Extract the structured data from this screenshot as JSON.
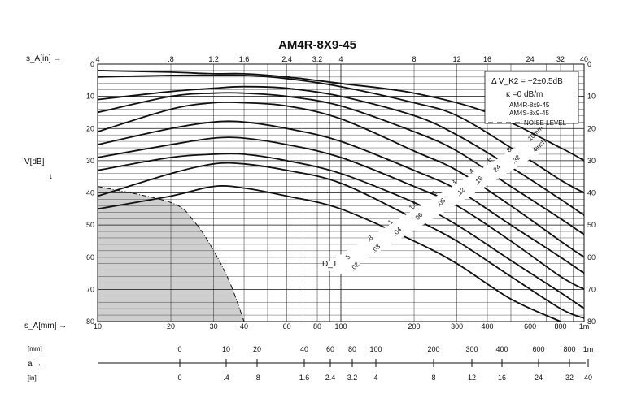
{
  "chart_data": {
    "type": "line",
    "title": "AM4R-8X9-45",
    "x_axis_top": {
      "label": "s_A[in] →",
      "ticks": [
        "4",
        ".8",
        "1.2",
        "1.6",
        "2.4",
        "3.2",
        "4",
        "8",
        "12",
        "16",
        "24",
        "32",
        "40"
      ]
    },
    "x_axis_bottom": {
      "label": "s_A[mm] →",
      "scale": "log",
      "range": [
        10,
        1000
      ],
      "ticks": [
        "10",
        "20",
        "30",
        "40",
        "60",
        "80",
        "100",
        "200",
        "300",
        "400",
        "600",
        "800",
        "1m"
      ]
    },
    "y_axis": {
      "label": "V[dB]",
      "arrow": "↓",
      "inverted": true,
      "range": [
        0,
        80
      ],
      "ticks": [
        "0",
        "10",
        "20",
        "30",
        "40",
        "50",
        "60",
        "70",
        "80"
      ]
    },
    "legend": {
      "position": "top-right",
      "lines": [
        "Δ V_K2 = −2±0.5dB",
        "κ =0 dB/m",
        "AM4R-8x9-45",
        "AM4S-8x9-45"
      ],
      "noise_label": "NOISE LEVEL"
    },
    "d_label": "D_T",
    "d_labels_mm": [
      "5",
      ".8",
      "1",
      "1.5",
      "2",
      "3",
      "4",
      "6",
      "8",
      "10mm"
    ],
    "d_labels_inch": [
      ".02",
      ".03",
      ".04",
      ".06",
      ".08",
      ".12",
      ".16",
      ".24",
      ".32",
      "4inch"
    ],
    "series": [
      {
        "values": [
          [
            10,
            2
          ],
          [
            20,
            2.5
          ],
          [
            30,
            3
          ],
          [
            40,
            3
          ],
          [
            60,
            4
          ],
          [
            100,
            6
          ],
          [
            200,
            9
          ],
          [
            400,
            15
          ],
          [
            800,
            26
          ],
          [
            1000,
            30
          ]
        ]
      },
      {
        "values": [
          [
            10,
            4
          ],
          [
            20,
            3.5
          ],
          [
            30,
            3.5
          ],
          [
            40,
            3.5
          ],
          [
            60,
            4.5
          ],
          [
            100,
            7
          ],
          [
            200,
            12
          ],
          [
            300,
            16
          ],
          [
            500,
            26
          ],
          [
            800,
            36
          ],
          [
            1000,
            40
          ]
        ]
      },
      {
        "values": [
          [
            10,
            11
          ],
          [
            20,
            8.5
          ],
          [
            30,
            7.5
          ],
          [
            40,
            7
          ],
          [
            60,
            7.5
          ],
          [
            100,
            10
          ],
          [
            200,
            16
          ],
          [
            300,
            22
          ],
          [
            500,
            32
          ],
          [
            800,
            42
          ],
          [
            1000,
            47
          ]
        ]
      },
      {
        "values": [
          [
            10,
            15
          ],
          [
            20,
            10
          ],
          [
            30,
            9
          ],
          [
            40,
            9
          ],
          [
            60,
            10
          ],
          [
            100,
            13
          ],
          [
            200,
            21
          ],
          [
            300,
            27
          ],
          [
            500,
            38
          ],
          [
            800,
            48
          ],
          [
            1000,
            53
          ]
        ]
      },
      {
        "values": [
          [
            10,
            21
          ],
          [
            20,
            14
          ],
          [
            30,
            12
          ],
          [
            40,
            12
          ],
          [
            60,
            13
          ],
          [
            100,
            17
          ],
          [
            200,
            27
          ],
          [
            300,
            33
          ],
          [
            500,
            44
          ],
          [
            800,
            55
          ],
          [
            1000,
            60
          ]
        ]
      },
      {
        "values": [
          [
            10,
            25
          ],
          [
            20,
            20
          ],
          [
            30,
            18
          ],
          [
            40,
            18
          ],
          [
            60,
            20
          ],
          [
            100,
            24
          ],
          [
            200,
            33
          ],
          [
            300,
            39
          ],
          [
            500,
            50
          ],
          [
            800,
            60
          ],
          [
            1000,
            65
          ]
        ]
      },
      {
        "values": [
          [
            10,
            29
          ],
          [
            20,
            25
          ],
          [
            30,
            23
          ],
          [
            40,
            23
          ],
          [
            60,
            25
          ],
          [
            100,
            29
          ],
          [
            200,
            38
          ],
          [
            300,
            44
          ],
          [
            500,
            55
          ],
          [
            800,
            66
          ],
          [
            1000,
            70
          ]
        ]
      },
      {
        "values": [
          [
            10,
            33
          ],
          [
            20,
            29
          ],
          [
            30,
            28
          ],
          [
            40,
            28
          ],
          [
            60,
            30
          ],
          [
            100,
            34
          ],
          [
            200,
            43
          ],
          [
            300,
            50
          ],
          [
            500,
            61
          ],
          [
            800,
            71
          ],
          [
            1000,
            76
          ]
        ]
      },
      {
        "values": [
          [
            10,
            41
          ],
          [
            20,
            34
          ],
          [
            30,
            31
          ],
          [
            40,
            31
          ],
          [
            60,
            33
          ],
          [
            100,
            37
          ],
          [
            200,
            48
          ],
          [
            300,
            55
          ],
          [
            500,
            66
          ],
          [
            800,
            76
          ],
          [
            1000,
            79
          ]
        ]
      },
      {
        "values": [
          [
            10,
            45
          ],
          [
            20,
            41
          ],
          [
            30,
            38
          ],
          [
            40,
            38.5
          ],
          [
            60,
            41
          ],
          [
            100,
            45
          ],
          [
            200,
            55
          ],
          [
            300,
            62
          ],
          [
            500,
            73
          ],
          [
            800,
            80
          ]
        ]
      }
    ],
    "noise_level": [
      [
        10,
        38
      ],
      [
        20,
        43
      ],
      [
        25,
        49
      ],
      [
        30,
        58
      ],
      [
        35,
        68
      ],
      [
        40,
        80
      ]
    ]
  },
  "bottom_scale": {
    "label": "a'→",
    "mm_label": "[mm]",
    "in_label": "[in]",
    "mm_ticks": [
      "0",
      "10",
      "20",
      "40",
      "60",
      "80",
      "100",
      "200",
      "300",
      "400",
      "600",
      "800",
      "1m"
    ],
    "in_ticks": [
      "0",
      ".4",
      ".8",
      "1.6",
      "2.4",
      "3.2",
      "4",
      "8",
      "12",
      "16",
      "24",
      "32",
      "40"
    ]
  }
}
